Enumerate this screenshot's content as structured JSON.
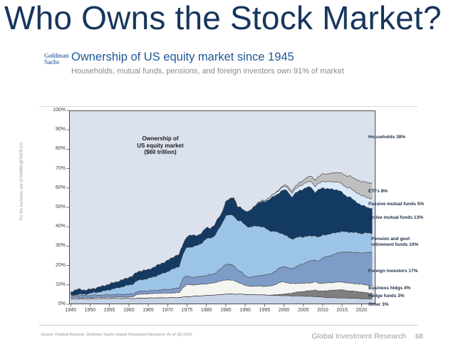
{
  "slide": {
    "title": "Who Owns the Stock Market?"
  },
  "header": {
    "logo_line1": "Goldman",
    "logo_line2": "Sachs",
    "title": "Ownership of US equity market since 1945",
    "subtitle": "Households, mutual funds, pensions, and foreign investors own 91% of market"
  },
  "watermark": "For the exclusive use of SAMBO@TKER.CO",
  "footer": {
    "source": "Source: Federal Reserve, Goldman Sachs Global Investment Research. As of 3Q 2022.",
    "department": "Global Investment Research",
    "page": "68"
  },
  "colors": {
    "title_navy": "#17365d",
    "heading_blue": "#1e5796",
    "logo_blue": "#5d81b6",
    "plot_background": "#dbe2ee"
  },
  "chart_data": {
    "type": "area",
    "stacked": true,
    "title": "Ownership of US equity market since 1945",
    "annotation": "Ownership of\nUS equity market\n($60 trillion)",
    "households_label": "Households 38%",
    "households_share_pct": 38,
    "background_color": "#dbe2ee",
    "ylim": [
      0,
      100
    ],
    "y_ticks": [
      0,
      10,
      20,
      30,
      40,
      50,
      60,
      70,
      80,
      90,
      100
    ],
    "x_range": [
      1944.6,
      2023.6
    ],
    "x_ticks": [
      1945,
      1950,
      1955,
      1960,
      1965,
      1970,
      1975,
      1980,
      1985,
      1990,
      1995,
      2000,
      2005,
      2010,
      2015,
      2020
    ],
    "years": [
      1945,
      1947,
      1949,
      1951,
      1953,
      1955,
      1957,
      1959,
      1961,
      1962,
      1963,
      1965,
      1967,
      1969,
      1971,
      1972,
      1973,
      1974,
      1975,
      1976,
      1977,
      1978,
      1979,
      1980,
      1981,
      1982,
      1983,
      1984,
      1985,
      1986,
      1987,
      1988,
      1989,
      1990,
      1991,
      1992,
      1993,
      1994,
      1995,
      1996,
      1997,
      1998,
      1999,
      2000,
      2001,
      2002,
      2003,
      2004,
      2005,
      2006,
      2007,
      2008,
      2009,
      2010,
      2011,
      2012,
      2013,
      2014,
      2015,
      2016,
      2017,
      2018,
      2019,
      2020,
      2021,
      2022,
      2022.75
    ],
    "series": [
      {
        "id": "other",
        "name": "Other",
        "label": "Other 3%",
        "share_pct": 3,
        "color": "#c6d3e7",
        "values": [
          2.8,
          2.8,
          2.8,
          2.9,
          2.9,
          3.0,
          3.0,
          3.0,
          3.0,
          3.0,
          3.1,
          3.2,
          3.3,
          3.3,
          3.4,
          3.4,
          3.5,
          3.7,
          3.9,
          4.0,
          4.2,
          4.3,
          4.4,
          4.5,
          4.6,
          4.7,
          4.9,
          5.1,
          5.3,
          5.3,
          5.3,
          5.2,
          5.2,
          5.1,
          5.0,
          5.0,
          4.9,
          4.9,
          4.8,
          4.7,
          4.6,
          4.5,
          4.5,
          4.4,
          4.4,
          4.3,
          4.3,
          4.2,
          4.2,
          4.1,
          4.0,
          4.0,
          3.8,
          3.6,
          3.5,
          3.4,
          3.3,
          3.3,
          3.2,
          3.1,
          3.1,
          3.0,
          3.0,
          2.9,
          2.8,
          2.7,
          2.7
        ]
      },
      {
        "id": "hedge",
        "name": "Hedge funds",
        "label": "Hedge funds 3%",
        "share_pct": 3,
        "color": "#7f7f7f",
        "values": [
          0,
          0,
          0,
          0,
          0,
          0,
          0,
          0,
          0,
          0,
          0,
          0,
          0,
          0,
          0,
          0,
          0,
          0,
          0,
          0,
          0,
          0,
          0,
          0,
          0,
          0,
          0,
          0,
          0,
          0,
          0,
          0,
          0,
          0,
          0,
          0,
          0,
          0,
          0,
          0,
          0.2,
          0.4,
          0.6,
          0.8,
          1.1,
          1.4,
          1.8,
          2.2,
          2.4,
          2.7,
          3.0,
          3.4,
          2.9,
          3.3,
          3.5,
          3.7,
          4.0,
          4.2,
          4.2,
          4.0,
          3.8,
          3.7,
          3.5,
          3.4,
          3.2,
          3.0,
          3.0
        ]
      },
      {
        "id": "business",
        "name": "Business hldgs",
        "label": "Business hldgs 4%",
        "share_pct": 4,
        "color": "#f4f4f1",
        "values": [
          0.5,
          0.5,
          0.5,
          0.6,
          0.6,
          0.6,
          0.7,
          0.7,
          0.8,
          2.0,
          2.1,
          2.2,
          2.3,
          2.4,
          2.4,
          2.5,
          2.5,
          5.0,
          6.3,
          6.0,
          5.8,
          5.9,
          6.0,
          6.0,
          6.2,
          6.3,
          6.8,
          7.0,
          7.2,
          7.3,
          7.0,
          6.2,
          5.5,
          4.6,
          4.3,
          4.3,
          4.4,
          4.5,
          4.4,
          4.6,
          4.8,
          5.5,
          6.3,
          6.3,
          5.5,
          5.0,
          4.6,
          4.4,
          4.2,
          4.1,
          4.0,
          4.3,
          4.1,
          4.0,
          4.0,
          4.0,
          4.0,
          4.0,
          4.0,
          4.0,
          4.0,
          4.0,
          4.0,
          4.0,
          4.0,
          4.0,
          4.0
        ]
      },
      {
        "id": "foreign",
        "name": "Foreign investors",
        "label": "Foreign investors 17%",
        "share_pct": 17,
        "color": "#7f9cc9",
        "values": [
          1.0,
          1.2,
          1.1,
          1.2,
          1.2,
          1.3,
          1.3,
          1.4,
          1.4,
          1.4,
          1.4,
          1.5,
          1.6,
          1.8,
          2.0,
          2.2,
          2.5,
          4.8,
          4.3,
          4.0,
          3.9,
          4.0,
          4.1,
          4.3,
          4.4,
          4.6,
          5.5,
          6.5,
          8.3,
          8.0,
          7.5,
          6.5,
          6.0,
          4.8,
          4.6,
          4.8,
          5.2,
          5.5,
          5.8,
          6.0,
          6.5,
          7.0,
          7.5,
          8.0,
          7.8,
          7.5,
          8.5,
          9.5,
          10.0,
          11.0,
          11.5,
          11.0,
          11.5,
          13.0,
          13.5,
          14.0,
          14.5,
          15.0,
          15.5,
          15.8,
          16.0,
          16.0,
          16.2,
          16.0,
          16.8,
          17.0,
          17.0
        ]
      },
      {
        "id": "pension",
        "name": "Pension and govt retirement funds",
        "label": "Pension and govt\nretirement funds 10%",
        "share_pct": 10,
        "color": "#9cc4e6",
        "values": [
          0.4,
          0.6,
          0.9,
          1.3,
          1.9,
          2.6,
          3.4,
          4.3,
          5.2,
          5.6,
          6.0,
          6.4,
          7.4,
          8.6,
          10.0,
          10.6,
          11.2,
          12.5,
          15.0,
          15.5,
          16.0,
          16.5,
          17.5,
          19.0,
          19.0,
          19.5,
          21.0,
          23.0,
          25.0,
          25.5,
          26.0,
          25.5,
          26.0,
          26.5,
          25.8,
          26.0,
          26.0,
          25.2,
          24.5,
          23.0,
          21.5,
          20.0,
          18.0,
          16.5,
          16.0,
          15.5,
          15.0,
          14.5,
          14.0,
          13.3,
          12.6,
          12.8,
          12.2,
          11.8,
          11.5,
          11.2,
          11.0,
          10.8,
          10.6,
          10.5,
          10.4,
          10.3,
          10.2,
          10.2,
          10.0,
          10.0,
          10.0
        ]
      },
      {
        "id": "active",
        "name": "Active mutual funds",
        "label": "Active mutual funds 13%",
        "share_pct": 13,
        "color": "#133a63",
        "values": [
          1.7,
          2.6,
          1.9,
          2.1,
          2.5,
          2.9,
          3.2,
          3.6,
          4.2,
          4.3,
          4.6,
          4.4,
          5.0,
          5.4,
          5.8,
          6.3,
          6.0,
          5.0,
          5.5,
          6.0,
          5.5,
          5.0,
          5.0,
          5.8,
          5.0,
          5.2,
          6.0,
          5.5,
          6.8,
          8.3,
          9.5,
          6.8,
          7.0,
          7.0,
          8.0,
          9.5,
          11.0,
          12.5,
          13.5,
          15.5,
          17.5,
          19.0,
          21.0,
          23.0,
          23.5,
          21.5,
          23.0,
          24.0,
          24.5,
          25.0,
          25.5,
          22.0,
          24.5,
          24.5,
          23.5,
          23.0,
          22.5,
          21.5,
          20.0,
          18.5,
          18.0,
          16.5,
          15.5,
          14.5,
          13.5,
          13.0,
          13.0
        ]
      },
      {
        "id": "passive",
        "name": "Passive mutual funds",
        "label": "Passive mutual funds 5%",
        "share_pct": 5,
        "color": "#d9e9f8",
        "values": [
          0,
          0,
          0,
          0,
          0,
          0,
          0,
          0,
          0,
          0,
          0,
          0,
          0,
          0,
          0,
          0,
          0,
          0,
          0,
          0,
          0,
          0,
          0,
          0,
          0,
          0,
          0,
          0,
          0,
          0,
          0,
          0,
          0,
          0,
          0,
          0.2,
          0.4,
          0.5,
          0.7,
          0.9,
          1.1,
          1.3,
          1.5,
          1.7,
          1.9,
          2.0,
          2.2,
          2.4,
          2.6,
          2.8,
          3.0,
          3.2,
          3.3,
          3.5,
          3.6,
          3.8,
          4.0,
          4.2,
          4.4,
          4.6,
          4.8,
          4.9,
          5.0,
          5.0,
          5.0,
          5.0,
          5.0
        ]
      },
      {
        "id": "etf",
        "name": "ETFs",
        "label": "ETFs 8%",
        "share_pct": 8,
        "color": "#bfbfbf",
        "values": [
          0,
          0,
          0,
          0,
          0,
          0,
          0,
          0,
          0,
          0,
          0,
          0,
          0,
          0,
          0,
          0,
          0,
          0,
          0,
          0,
          0,
          0,
          0,
          0,
          0,
          0,
          0,
          0,
          0,
          0,
          0,
          0,
          0,
          0,
          0,
          0,
          0,
          0,
          0,
          0,
          0,
          0.2,
          0.4,
          0.7,
          0.9,
          1.1,
          1.4,
          1.7,
          2.0,
          2.4,
          2.8,
          3.3,
          3.5,
          3.8,
          4.0,
          4.3,
          4.7,
          5.0,
          5.4,
          5.8,
          6.2,
          6.5,
          6.8,
          7.2,
          7.7,
          8.0,
          8.0
        ]
      }
    ]
  }
}
